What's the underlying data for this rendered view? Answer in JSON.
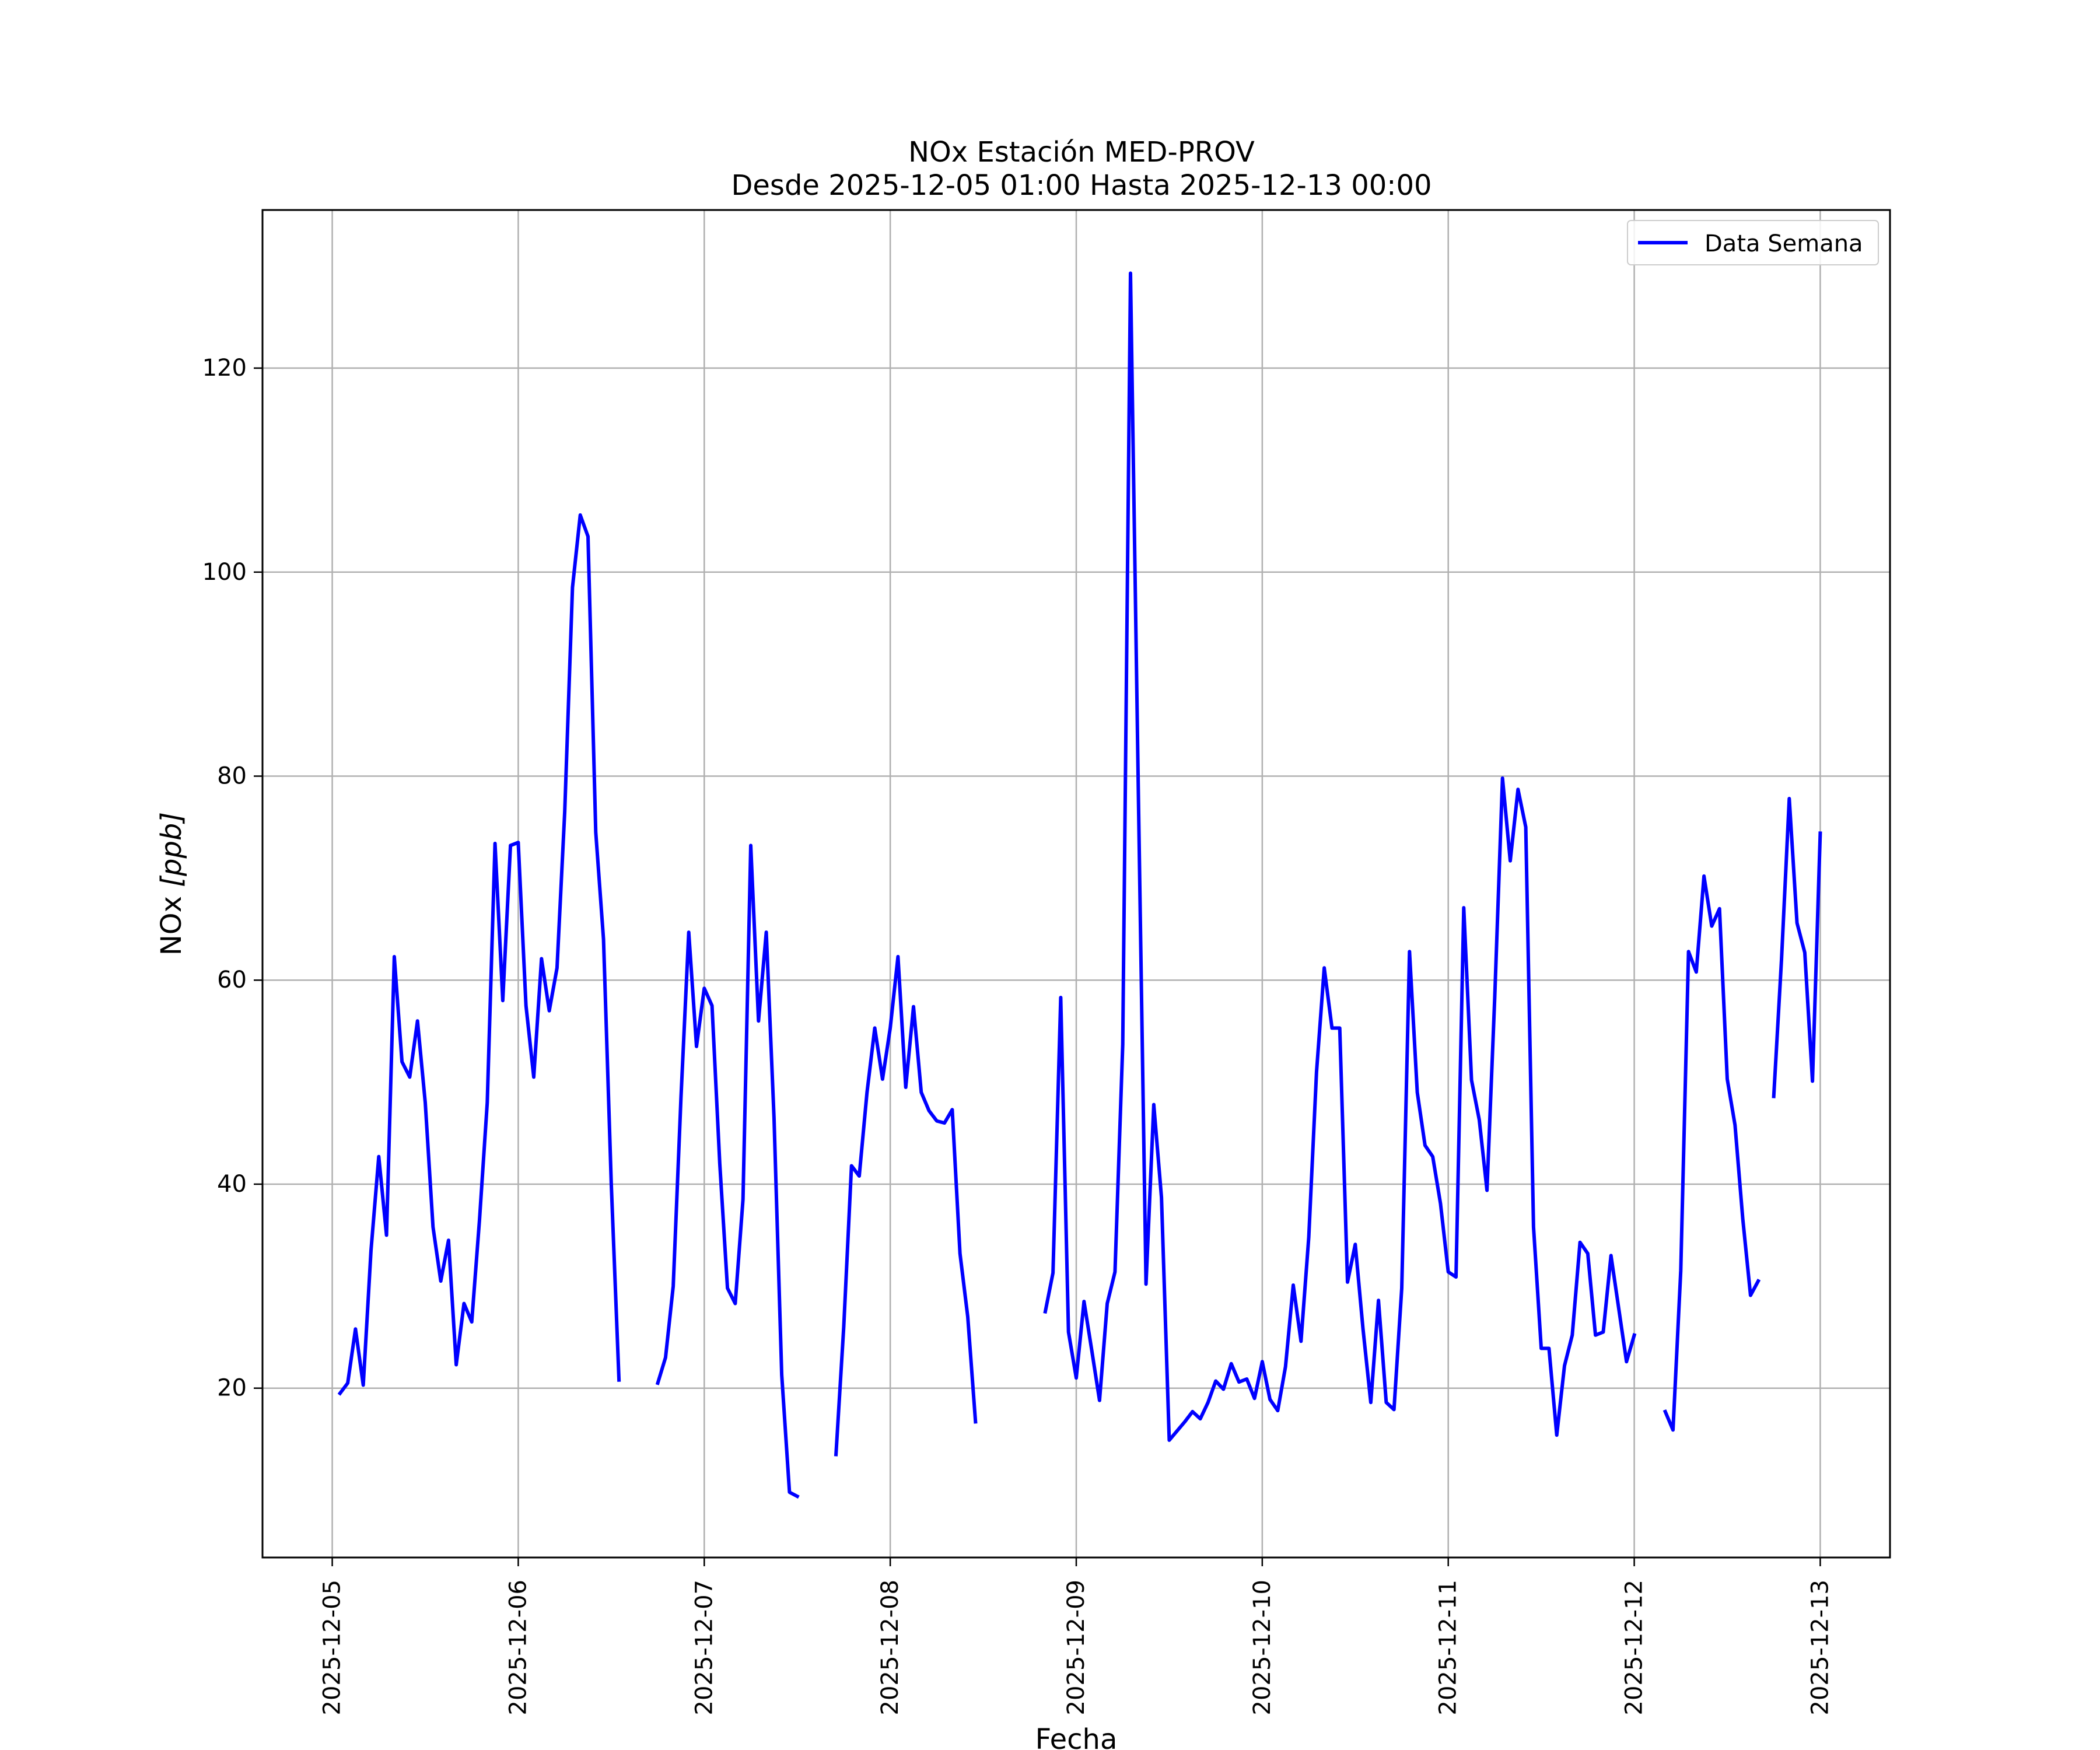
{
  "chart_data": {
    "type": "line",
    "title": "NOx Estación MED-PROV",
    "subtitle": "Desde 2025-12-05 01:00 Hasta 2025-12-13 00:00",
    "xlabel": "Fecha",
    "ylabel": "NOx [ppb]",
    "ylabel_main": "NOx ",
    "ylabel_unit": "[ppb]",
    "xlim": [
      "2025-12-04 15:00",
      "2025-12-13 09:00"
    ],
    "ylim": [
      3.4,
      135.5
    ],
    "grid": true,
    "legend_position": "top-right",
    "x_ticks": [
      "2025-12-05",
      "2025-12-06",
      "2025-12-07",
      "2025-12-08",
      "2025-12-09",
      "2025-12-10",
      "2025-12-11",
      "2025-12-12",
      "2025-12-13"
    ],
    "y_ticks": [
      "20",
      "40",
      "60",
      "80",
      "100",
      "120"
    ],
    "series": [
      {
        "name": "Data Semana",
        "color": "#0000ff",
        "points": [
          [
            "2025-12-05 01:00",
            19.5
          ],
          [
            "2025-12-05 02:00",
            20.5
          ],
          [
            "2025-12-05 03:00",
            25.8
          ],
          [
            "2025-12-05 04:00",
            20.3
          ],
          [
            "2025-12-05 05:00",
            33.5
          ],
          [
            "2025-12-05 06:00",
            42.7
          ],
          [
            "2025-12-05 07:00",
            35.0
          ],
          [
            "2025-12-05 08:00",
            62.3
          ],
          [
            "2025-12-05 09:00",
            52.0
          ],
          [
            "2025-12-05 10:00",
            50.5
          ],
          [
            "2025-12-05 11:00",
            56.0
          ],
          [
            "2025-12-05 12:00",
            48.0
          ],
          [
            "2025-12-05 13:00",
            35.8
          ],
          [
            "2025-12-05 14:00",
            30.5
          ],
          [
            "2025-12-05 15:00",
            34.5
          ],
          [
            "2025-12-05 16:00",
            22.3
          ],
          [
            "2025-12-05 17:00",
            28.3
          ],
          [
            "2025-12-05 18:00",
            26.5
          ],
          [
            "2025-12-05 19:00",
            36.5
          ],
          [
            "2025-12-05 20:00",
            48.0
          ],
          [
            "2025-12-05 21:00",
            73.4
          ],
          [
            "2025-12-05 22:00",
            58.0
          ],
          [
            "2025-12-05 23:00",
            73.2
          ],
          [
            "2025-12-06 00:00",
            73.5
          ],
          [
            "2025-12-06 01:00",
            57.5
          ],
          [
            "2025-12-06 02:00",
            50.5
          ],
          [
            "2025-12-06 03:00",
            62.1
          ],
          [
            "2025-12-06 04:00",
            57.0
          ],
          [
            "2025-12-06 05:00",
            61.2
          ],
          [
            "2025-12-06 06:00",
            76.5
          ],
          [
            "2025-12-06 07:00",
            98.5
          ],
          [
            "2025-12-06 08:00",
            105.6
          ],
          [
            "2025-12-06 09:00",
            103.5
          ],
          [
            "2025-12-06 10:00",
            74.5
          ],
          [
            "2025-12-06 11:00",
            64.0
          ],
          [
            "2025-12-06 12:00",
            40.0
          ],
          [
            "2025-12-06 13:00",
            20.8
          ],
          [
            "2025-12-06 14:00",
            null
          ],
          [
            "2025-12-06 15:00",
            null
          ],
          [
            "2025-12-06 16:00",
            null
          ],
          [
            "2025-12-06 17:00",
            null
          ],
          [
            "2025-12-06 18:00",
            20.5
          ],
          [
            "2025-12-06 19:00",
            23.0
          ],
          [
            "2025-12-06 20:00",
            30.0
          ],
          [
            "2025-12-06 21:00",
            48.5
          ],
          [
            "2025-12-06 22:00",
            64.7
          ],
          [
            "2025-12-06 23:00",
            53.5
          ],
          [
            "2025-12-07 00:00",
            59.2
          ],
          [
            "2025-12-07 01:00",
            57.5
          ],
          [
            "2025-12-07 02:00",
            42.0
          ],
          [
            "2025-12-07 03:00",
            29.8
          ],
          [
            "2025-12-07 04:00",
            28.3
          ],
          [
            "2025-12-07 05:00",
            38.5
          ],
          [
            "2025-12-07 06:00",
            73.2
          ],
          [
            "2025-12-07 07:00",
            56.0
          ],
          [
            "2025-12-07 08:00",
            64.7
          ],
          [
            "2025-12-07 09:00",
            46.5
          ],
          [
            "2025-12-07 10:00",
            21.3
          ],
          [
            "2025-12-07 11:00",
            9.8
          ],
          [
            "2025-12-07 12:00",
            9.4
          ],
          [
            "2025-12-07 13:00",
            null
          ],
          [
            "2025-12-07 14:00",
            null
          ],
          [
            "2025-12-07 15:00",
            null
          ],
          [
            "2025-12-07 16:00",
            null
          ],
          [
            "2025-12-07 17:00",
            13.5
          ],
          [
            "2025-12-07 18:00",
            26.0
          ],
          [
            "2025-12-07 19:00",
            41.8
          ],
          [
            "2025-12-07 20:00",
            40.8
          ],
          [
            "2025-12-07 21:00",
            49.0
          ],
          [
            "2025-12-07 22:00",
            55.3
          ],
          [
            "2025-12-07 23:00",
            50.3
          ],
          [
            "2025-12-08 00:00",
            55.3
          ],
          [
            "2025-12-08 01:00",
            62.3
          ],
          [
            "2025-12-08 02:00",
            49.5
          ],
          [
            "2025-12-08 03:00",
            57.4
          ],
          [
            "2025-12-08 04:00",
            49.0
          ],
          [
            "2025-12-08 05:00",
            47.2
          ],
          [
            "2025-12-08 06:00",
            46.2
          ],
          [
            "2025-12-08 07:00",
            46.0
          ],
          [
            "2025-12-08 08:00",
            47.3
          ],
          [
            "2025-12-08 09:00",
            33.2
          ],
          [
            "2025-12-08 10:00",
            27.0
          ],
          [
            "2025-12-08 11:00",
            16.7
          ],
          [
            "2025-12-08 12:00",
            null
          ],
          [
            "2025-12-08 13:00",
            null
          ],
          [
            "2025-12-08 14:00",
            null
          ],
          [
            "2025-12-08 15:00",
            null
          ],
          [
            "2025-12-08 16:00",
            null
          ],
          [
            "2025-12-08 17:00",
            null
          ],
          [
            "2025-12-08 18:00",
            null
          ],
          [
            "2025-12-08 19:00",
            null
          ],
          [
            "2025-12-08 20:00",
            27.5
          ],
          [
            "2025-12-08 21:00",
            31.3
          ],
          [
            "2025-12-08 22:00",
            58.3
          ],
          [
            "2025-12-08 23:00",
            25.5
          ],
          [
            "2025-12-09 00:00",
            21.0
          ],
          [
            "2025-12-09 01:00",
            28.5
          ],
          [
            "2025-12-09 02:00",
            23.7
          ],
          [
            "2025-12-09 03:00",
            18.8
          ],
          [
            "2025-12-09 04:00",
            28.3
          ],
          [
            "2025-12-09 05:00",
            31.4
          ],
          [
            "2025-12-09 06:00",
            53.7
          ],
          [
            "2025-12-09 07:00",
            129.3
          ],
          [
            "2025-12-09 08:00",
            79.0
          ],
          [
            "2025-12-09 09:00",
            30.2
          ],
          [
            "2025-12-09 10:00",
            47.8
          ],
          [
            "2025-12-09 11:00",
            38.7
          ],
          [
            "2025-12-09 12:00",
            14.9
          ],
          [
            "2025-12-09 13:00",
            15.8
          ],
          [
            "2025-12-09 14:00",
            16.7
          ],
          [
            "2025-12-09 15:00",
            17.7
          ],
          [
            "2025-12-09 16:00",
            17.0
          ],
          [
            "2025-12-09 17:00",
            18.6
          ],
          [
            "2025-12-09 18:00",
            20.7
          ],
          [
            "2025-12-09 19:00",
            19.9
          ],
          [
            "2025-12-09 20:00",
            22.4
          ],
          [
            "2025-12-09 21:00",
            20.6
          ],
          [
            "2025-12-09 22:00",
            20.9
          ],
          [
            "2025-12-09 23:00",
            19.0
          ],
          [
            "2025-12-10 00:00",
            22.6
          ],
          [
            "2025-12-10 01:00",
            18.9
          ],
          [
            "2025-12-10 02:00",
            17.8
          ],
          [
            "2025-12-10 03:00",
            22.1
          ],
          [
            "2025-12-10 04:00",
            30.1
          ],
          [
            "2025-12-10 05:00",
            24.6
          ],
          [
            "2025-12-10 06:00",
            34.8
          ],
          [
            "2025-12-10 07:00",
            51.0
          ],
          [
            "2025-12-10 08:00",
            61.2
          ],
          [
            "2025-12-10 09:00",
            55.3
          ],
          [
            "2025-12-10 10:00",
            55.3
          ],
          [
            "2025-12-10 11:00",
            30.4
          ],
          [
            "2025-12-10 12:00",
            34.1
          ],
          [
            "2025-12-10 13:00",
            25.8
          ],
          [
            "2025-12-10 14:00",
            18.6
          ],
          [
            "2025-12-10 15:00",
            28.6
          ],
          [
            "2025-12-10 16:00",
            18.6
          ],
          [
            "2025-12-10 17:00",
            17.9
          ],
          [
            "2025-12-10 18:00",
            29.8
          ],
          [
            "2025-12-10 19:00",
            62.8
          ],
          [
            "2025-12-10 20:00",
            49.0
          ],
          [
            "2025-12-10 21:00",
            43.8
          ],
          [
            "2025-12-10 22:00",
            42.7
          ],
          [
            "2025-12-10 23:00",
            38.1
          ],
          [
            "2025-12-11 00:00",
            31.4
          ],
          [
            "2025-12-11 01:00",
            30.9
          ],
          [
            "2025-12-11 02:00",
            67.1
          ],
          [
            "2025-12-11 03:00",
            50.2
          ],
          [
            "2025-12-11 04:00",
            46.3
          ],
          [
            "2025-12-11 05:00",
            39.4
          ],
          [
            "2025-12-11 06:00",
            58.3
          ],
          [
            "2025-12-11 07:00",
            79.8
          ],
          [
            "2025-12-11 08:00",
            71.7
          ],
          [
            "2025-12-11 09:00",
            78.7
          ],
          [
            "2025-12-11 10:00",
            75.0
          ],
          [
            "2025-12-11 11:00",
            35.8
          ],
          [
            "2025-12-11 12:00",
            23.9
          ],
          [
            "2025-12-11 13:00",
            23.9
          ],
          [
            "2025-12-11 14:00",
            15.4
          ],
          [
            "2025-12-11 15:00",
            22.2
          ],
          [
            "2025-12-11 16:00",
            25.2
          ],
          [
            "2025-12-11 17:00",
            34.3
          ],
          [
            "2025-12-11 18:00",
            33.2
          ],
          [
            "2025-12-11 19:00",
            25.2
          ],
          [
            "2025-12-11 20:00",
            25.5
          ],
          [
            "2025-12-11 21:00",
            33.0
          ],
          [
            "2025-12-11 22:00",
            27.8
          ],
          [
            "2025-12-11 23:00",
            22.6
          ],
          [
            "2025-12-12 00:00",
            25.2
          ],
          [
            "2025-12-12 01:00",
            null
          ],
          [
            "2025-12-12 02:00",
            null
          ],
          [
            "2025-12-12 03:00",
            null
          ],
          [
            "2025-12-12 04:00",
            17.7
          ],
          [
            "2025-12-12 05:00",
            15.9
          ],
          [
            "2025-12-12 06:00",
            31.5
          ],
          [
            "2025-12-12 07:00",
            62.8
          ],
          [
            "2025-12-12 08:00",
            60.8
          ],
          [
            "2025-12-12 09:00",
            70.2
          ],
          [
            "2025-12-12 10:00",
            65.3
          ],
          [
            "2025-12-12 11:00",
            67.0
          ],
          [
            "2025-12-12 12:00",
            50.3
          ],
          [
            "2025-12-12 13:00",
            45.8
          ],
          [
            "2025-12-12 14:00",
            36.6
          ],
          [
            "2025-12-12 15:00",
            29.1
          ],
          [
            "2025-12-12 16:00",
            30.5
          ],
          [
            "2025-12-12 17:00",
            null
          ],
          [
            "2025-12-12 18:00",
            48.6
          ],
          [
            "2025-12-12 19:00",
            62.0
          ],
          [
            "2025-12-12 20:00",
            77.8
          ],
          [
            "2025-12-12 21:00",
            65.6
          ],
          [
            "2025-12-12 22:00",
            62.7
          ],
          [
            "2025-12-12 23:00",
            50.1
          ],
          [
            "2025-12-13 00:00",
            74.4
          ]
        ]
      }
    ]
  }
}
